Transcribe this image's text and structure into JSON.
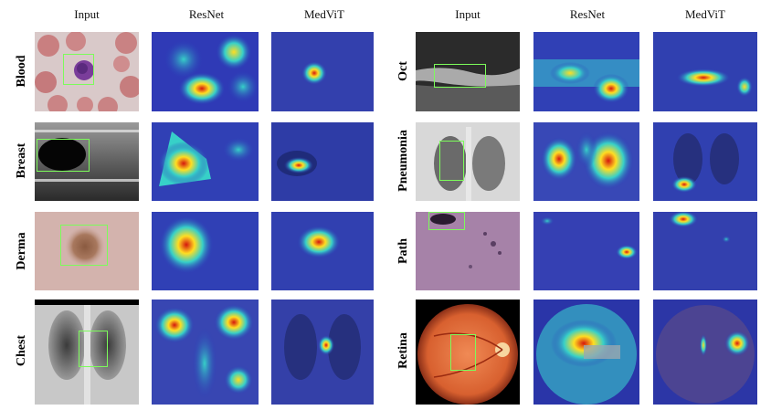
{
  "headers": {
    "left": [
      "Input",
      "ResNet",
      "MedViT"
    ],
    "right": [
      "Input",
      "ResNet",
      "MedViT"
    ]
  },
  "rows_left": [
    "Blood",
    "Breast",
    "Derma",
    "Chest"
  ],
  "rows_right": [
    "Oct",
    "Pneumonia",
    "Path",
    "Retina"
  ],
  "colors": {
    "heat_low": "#2a35b8",
    "heat_mid": "#37d0c8",
    "heat_high": "#ffdd22",
    "heat_peak": "#d4160e",
    "box": "#7CFC5A"
  }
}
